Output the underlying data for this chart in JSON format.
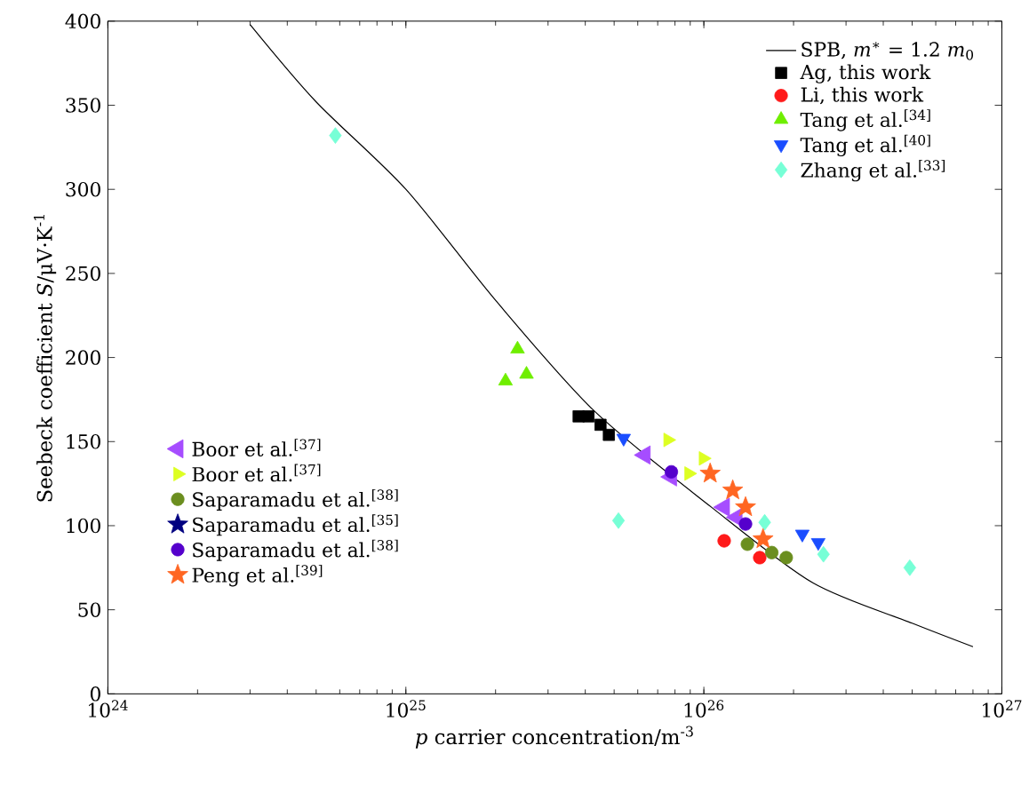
{
  "chart_data": {
    "type": "scatter",
    "xlabel": "*p* carrier concentration/m$^{-3}$",
    "ylabel": "Seebeck coefficient *S*/μV·K$^{-1}$",
    "log": "x",
    "xlim": [
      1e+24,
      1e+27
    ],
    "ylim": [
      0,
      400
    ],
    "xticks": [
      {
        "value": 1e+24,
        "label": "10$^{24}$"
      },
      {
        "value": 1e+25,
        "label": "10$^{25}$"
      },
      {
        "value": 1e+26,
        "label": "10$^{26}$"
      },
      {
        "value": 1e+27,
        "label": "10$^{27}$"
      }
    ],
    "yticks": [
      0,
      50,
      100,
      150,
      200,
      250,
      300,
      350,
      400
    ],
    "grid": false,
    "legend": "top right",
    "series": [
      {
        "name": "SPB, *m*$^{∗}$ = 1.2 *m*$_{0}$",
        "type": "line",
        "marker": "none",
        "color": "#000000",
        "x": [
          3e+24,
          5e+24,
          1e+25,
          2e+25,
          4.3e+25,
          1.06e+26,
          2.32e+26,
          5e+26,
          8e+26
        ],
        "values": [
          398,
          352,
          300,
          234,
          168,
          111,
          66,
          42,
          28
        ]
      },
      {
        "name": "Ag, this work",
        "marker": "square",
        "color": "#000000",
        "x": [
          3.8e+25,
          4.1e+25,
          4.5e+25,
          4.8e+25
        ],
        "values": [
          165,
          165,
          160,
          154
        ]
      },
      {
        "name": "Li, this work",
        "marker": "circle",
        "color": "#ff1a1a",
        "x": [
          1.17e+26,
          1.54e+26
        ],
        "values": [
          91,
          81
        ]
      },
      {
        "name": "Tang et al.$^{[34]}$",
        "marker": "triangle",
        "color": "#6fee00",
        "x": [
          2.37e+25,
          2.16e+25,
          2.54e+25
        ],
        "values": [
          205,
          186,
          190
        ]
      },
      {
        "name": "Tang et al.$^{[40]}$",
        "marker": "triangle-down",
        "color": "#1a4dff",
        "x": [
          5.38e+25,
          2.14e+26,
          2.42e+26
        ],
        "values": [
          152,
          95,
          90
        ]
      },
      {
        "name": "Zhang et al.$^{[33]}$",
        "marker": "diamond",
        "color": "#77ffd6",
        "x": [
          5.8e+24,
          5.17e+25,
          1.6e+26,
          2.52e+26,
          4.91e+26
        ],
        "values": [
          332,
          103,
          102,
          83,
          75
        ]
      },
      {
        "name": "Boor et al.$^{[37]}$",
        "marker": "triangle-left",
        "color": "#a64dff",
        "x": [
          6.34e+25,
          7.78e+25,
          1.17e+26,
          1.29e+26
        ],
        "values": [
          142,
          129,
          111,
          105
        ]
      },
      {
        "name": "Boor et al.$^{[37]}$",
        "marker": "triangle-right",
        "color": "#ddff22",
        "x": [
          7.57e+25,
          9.95e+25,
          8.9e+25
        ],
        "values": [
          151,
          140,
          131
        ]
      },
      {
        "name": "Saparamadu et al.$^{[38]}$",
        "marker": "circle",
        "color": "#6b8e1f",
        "x": [
          1.4e+26,
          1.69e+26,
          1.89e+26
        ],
        "values": [
          89,
          84,
          81
        ]
      },
      {
        "name": "Saparamadu et al.$^{[35]}$",
        "marker": "star",
        "color": "#000080",
        "x": [
          null
        ],
        "values": [
          null
        ]
      },
      {
        "name": "Saparamadu et al.$^{[38]}$",
        "marker": "circle",
        "color": "#5500cc",
        "x": [
          7.78e+25,
          1.38e+26
        ],
        "values": [
          132,
          101
        ]
      },
      {
        "name": "Peng et al.$^{[39]}$",
        "marker": "star",
        "color": "#ff6622",
        "x": [
          1.05e+26,
          1.25e+26,
          1.38e+26,
          1.58e+26
        ],
        "values": [
          131,
          121,
          111,
          92
        ]
      }
    ]
  }
}
